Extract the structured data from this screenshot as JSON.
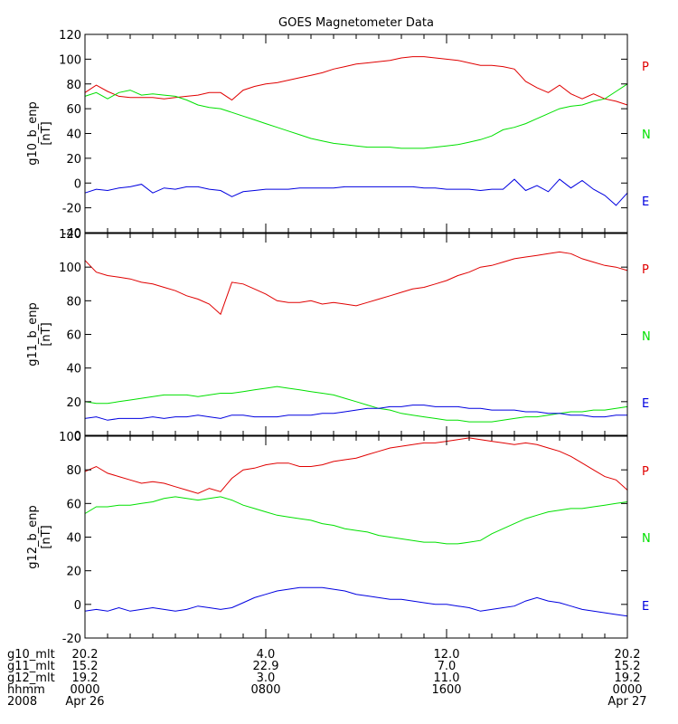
{
  "title": "GOES Magnetometer Data",
  "colors": {
    "P": "#e00000",
    "N": "#00e000",
    "E": "#0000e0"
  },
  "chart_data": [
    {
      "type": "line",
      "ylabel": "g10_b_enp",
      "yunit": "[nT]",
      "ylim": [
        -40,
        120
      ],
      "yticks": [
        -40,
        -20,
        0,
        20,
        40,
        60,
        80,
        100,
        120
      ],
      "xlim": [
        0,
        24
      ],
      "legend": [
        {
          "label": "P",
          "series": "P"
        },
        {
          "label": "N",
          "series": "N"
        },
        {
          "label": "E",
          "series": "E"
        }
      ],
      "series": [
        {
          "key": "P",
          "x": [
            0,
            0.5,
            1,
            1.5,
            2,
            2.5,
            3,
            3.5,
            4,
            4.5,
            5,
            5.5,
            6,
            6.5,
            7,
            7.5,
            8,
            8.5,
            9,
            9.5,
            10,
            10.5,
            11,
            11.5,
            12,
            12.5,
            13,
            13.5,
            14,
            14.5,
            15,
            15.5,
            16,
            16.5,
            17,
            17.5,
            18,
            18.5,
            19,
            19.5,
            20,
            20.5,
            21,
            21.5,
            22,
            22.5,
            23,
            23.5,
            24
          ],
          "y": [
            73,
            79,
            74,
            70,
            69,
            69,
            69,
            68,
            69,
            70,
            71,
            73,
            73,
            67,
            75,
            78,
            80,
            81,
            83,
            85,
            87,
            89,
            92,
            94,
            96,
            97,
            98,
            99,
            101,
            102,
            102,
            101,
            100,
            99,
            97,
            95,
            95,
            94,
            92,
            82,
            77,
            73,
            79,
            72,
            68,
            72,
            68,
            66,
            63
          ]
        },
        {
          "key": "N",
          "x": [
            0,
            0.5,
            1,
            1.5,
            2,
            2.5,
            3,
            3.5,
            4,
            4.5,
            5,
            5.5,
            6,
            6.5,
            7,
            7.5,
            8,
            8.5,
            9,
            9.5,
            10,
            10.5,
            11,
            11.5,
            12,
            12.5,
            13,
            13.5,
            14,
            14.5,
            15,
            15.5,
            16,
            16.5,
            17,
            17.5,
            18,
            18.5,
            19,
            19.5,
            20,
            20.5,
            21,
            21.5,
            22,
            22.5,
            23,
            23.5,
            24
          ],
          "y": [
            70,
            73,
            68,
            73,
            75,
            71,
            72,
            71,
            70,
            67,
            63,
            61,
            60,
            57,
            54,
            51,
            48,
            45,
            42,
            39,
            36,
            34,
            32,
            31,
            30,
            29,
            29,
            29,
            28,
            28,
            28,
            29,
            30,
            31,
            33,
            35,
            38,
            43,
            45,
            48,
            52,
            56,
            60,
            62,
            63,
            66,
            68,
            74,
            80
          ]
        },
        {
          "key": "E",
          "x": [
            0,
            0.5,
            1,
            1.5,
            2,
            2.5,
            3,
            3.5,
            4,
            4.5,
            5,
            5.5,
            6,
            6.5,
            7,
            7.5,
            8,
            8.5,
            9,
            9.5,
            10,
            10.5,
            11,
            11.5,
            12,
            12.5,
            13,
            13.5,
            14,
            14.5,
            15,
            15.5,
            16,
            16.5,
            17,
            17.5,
            18,
            18.5,
            19,
            19.5,
            20,
            20.5,
            21,
            21.5,
            22,
            22.5,
            23,
            23.5,
            24
          ],
          "y": [
            -8,
            -5,
            -6,
            -4,
            -3,
            -1,
            -8,
            -4,
            -5,
            -3,
            -3,
            -5,
            -6,
            -11,
            -7,
            -6,
            -5,
            -5,
            -5,
            -4,
            -4,
            -4,
            -4,
            -3,
            -3,
            -3,
            -3,
            -3,
            -3,
            -3,
            -4,
            -4,
            -5,
            -5,
            -5,
            -6,
            -5,
            -5,
            3,
            -6,
            -2,
            -7,
            3,
            -4,
            2,
            -5,
            -10,
            -18,
            -8
          ]
        }
      ]
    },
    {
      "type": "line",
      "ylabel": "g11_b_enp",
      "yunit": "[nT]",
      "ylim": [
        0,
        120
      ],
      "yticks": [
        0,
        20,
        40,
        60,
        80,
        100,
        120
      ],
      "xlim": [
        0,
        24
      ],
      "legend": [
        {
          "label": "P",
          "series": "P"
        },
        {
          "label": "N",
          "series": "N"
        },
        {
          "label": "E",
          "series": "E"
        }
      ],
      "series": [
        {
          "key": "P",
          "x": [
            0,
            0.5,
            1,
            1.5,
            2,
            2.5,
            3,
            3.5,
            4,
            4.5,
            5,
            5.5,
            6,
            6.5,
            7,
            7.5,
            8,
            8.5,
            9,
            9.5,
            10,
            10.5,
            11,
            11.5,
            12,
            12.5,
            13,
            13.5,
            14,
            14.5,
            15,
            15.5,
            16,
            16.5,
            17,
            17.5,
            18,
            18.5,
            19,
            19.5,
            20,
            20.5,
            21,
            21.5,
            22,
            22.5,
            23,
            23.5,
            24
          ],
          "y": [
            104,
            97,
            95,
            94,
            93,
            91,
            90,
            88,
            86,
            83,
            81,
            78,
            72,
            91,
            90,
            87,
            84,
            80,
            79,
            79,
            80,
            78,
            79,
            78,
            77,
            79,
            81,
            83,
            85,
            87,
            88,
            90,
            92,
            95,
            97,
            100,
            101,
            103,
            105,
            106,
            107,
            108,
            109,
            108,
            105,
            103,
            101,
            100,
            98
          ]
        },
        {
          "key": "N",
          "x": [
            0,
            0.5,
            1,
            1.5,
            2,
            2.5,
            3,
            3.5,
            4,
            4.5,
            5,
            5.5,
            6,
            6.5,
            7,
            7.5,
            8,
            8.5,
            9,
            9.5,
            10,
            10.5,
            11,
            11.5,
            12,
            12.5,
            13,
            13.5,
            14,
            14.5,
            15,
            15.5,
            16,
            16.5,
            17,
            17.5,
            18,
            18.5,
            19,
            19.5,
            20,
            20.5,
            21,
            21.5,
            22,
            22.5,
            23,
            23.5,
            24
          ],
          "y": [
            20,
            19,
            19,
            20,
            21,
            22,
            23,
            24,
            24,
            24,
            23,
            24,
            25,
            25,
            26,
            27,
            28,
            29,
            28,
            27,
            26,
            25,
            24,
            22,
            20,
            18,
            16,
            15,
            13,
            12,
            11,
            10,
            9,
            9,
            8,
            8,
            8,
            9,
            10,
            11,
            11,
            12,
            13,
            14,
            14,
            15,
            15,
            16,
            17
          ]
        },
        {
          "key": "E",
          "x": [
            0,
            0.5,
            1,
            1.5,
            2,
            2.5,
            3,
            3.5,
            4,
            4.5,
            5,
            5.5,
            6,
            6.5,
            7,
            7.5,
            8,
            8.5,
            9,
            9.5,
            10,
            10.5,
            11,
            11.5,
            12,
            12.5,
            13,
            13.5,
            14,
            14.5,
            15,
            15.5,
            16,
            16.5,
            17,
            17.5,
            18,
            18.5,
            19,
            19.5,
            20,
            20.5,
            21,
            21.5,
            22,
            22.5,
            23,
            23.5,
            24
          ],
          "y": [
            10,
            11,
            9,
            10,
            10,
            10,
            11,
            10,
            11,
            11,
            12,
            11,
            10,
            12,
            12,
            11,
            11,
            11,
            12,
            12,
            12,
            13,
            13,
            14,
            15,
            16,
            16,
            17,
            17,
            18,
            18,
            17,
            17,
            17,
            16,
            16,
            15,
            15,
            15,
            14,
            14,
            13,
            13,
            12,
            12,
            11,
            11,
            12,
            12
          ]
        }
      ]
    },
    {
      "type": "line",
      "ylabel": "g12_b_enp",
      "yunit": "[nT]",
      "ylim": [
        -20,
        100
      ],
      "yticks": [
        -20,
        0,
        20,
        40,
        60,
        80,
        100
      ],
      "xlim": [
        0,
        24
      ],
      "legend": [
        {
          "label": "P",
          "series": "P"
        },
        {
          "label": "N",
          "series": "N"
        },
        {
          "label": "E",
          "series": "E"
        }
      ],
      "series": [
        {
          "key": "P",
          "x": [
            0,
            0.5,
            1,
            1.5,
            2,
            2.5,
            3,
            3.5,
            4,
            4.5,
            5,
            5.5,
            6,
            6.5,
            7,
            7.5,
            8,
            8.5,
            9,
            9.5,
            10,
            10.5,
            11,
            11.5,
            12,
            12.5,
            13,
            13.5,
            14,
            14.5,
            15,
            15.5,
            16,
            16.5,
            17,
            17.5,
            18,
            18.5,
            19,
            19.5,
            20,
            20.5,
            21,
            21.5,
            22,
            22.5,
            23,
            23.5,
            24
          ],
          "y": [
            79,
            82,
            78,
            76,
            74,
            72,
            73,
            72,
            70,
            68,
            66,
            69,
            67,
            75,
            80,
            81,
            83,
            84,
            84,
            82,
            82,
            83,
            85,
            86,
            87,
            89,
            91,
            93,
            94,
            95,
            96,
            96,
            97,
            98,
            99,
            98,
            97,
            96,
            95,
            96,
            95,
            93,
            91,
            88,
            84,
            80,
            76,
            74,
            68
          ]
        },
        {
          "key": "N",
          "x": [
            0,
            0.5,
            1,
            1.5,
            2,
            2.5,
            3,
            3.5,
            4,
            4.5,
            5,
            5.5,
            6,
            6.5,
            7,
            7.5,
            8,
            8.5,
            9,
            9.5,
            10,
            10.5,
            11,
            11.5,
            12,
            12.5,
            13,
            13.5,
            14,
            14.5,
            15,
            15.5,
            16,
            16.5,
            17,
            17.5,
            18,
            18.5,
            19,
            19.5,
            20,
            20.5,
            21,
            21.5,
            22,
            22.5,
            23,
            23.5,
            24
          ],
          "y": [
            54,
            58,
            58,
            59,
            59,
            60,
            61,
            63,
            64,
            63,
            62,
            63,
            64,
            62,
            59,
            57,
            55,
            53,
            52,
            51,
            50,
            48,
            47,
            45,
            44,
            43,
            41,
            40,
            39,
            38,
            37,
            37,
            36,
            36,
            37,
            38,
            42,
            45,
            48,
            51,
            53,
            55,
            56,
            57,
            57,
            58,
            59,
            60,
            61
          ]
        },
        {
          "key": "E",
          "x": [
            0,
            0.5,
            1,
            1.5,
            2,
            2.5,
            3,
            3.5,
            4,
            4.5,
            5,
            5.5,
            6,
            6.5,
            7,
            7.5,
            8,
            8.5,
            9,
            9.5,
            10,
            10.5,
            11,
            11.5,
            12,
            12.5,
            13,
            13.5,
            14,
            14.5,
            15,
            15.5,
            16,
            16.5,
            17,
            17.5,
            18,
            18.5,
            19,
            19.5,
            20,
            20.5,
            21,
            21.5,
            22,
            22.5,
            23,
            23.5,
            24
          ],
          "y": [
            -4,
            -3,
            -4,
            -2,
            -4,
            -3,
            -2,
            -3,
            -4,
            -3,
            -1,
            -2,
            -3,
            -2,
            1,
            4,
            6,
            8,
            9,
            10,
            10,
            10,
            9,
            8,
            6,
            5,
            4,
            3,
            3,
            2,
            1,
            0,
            0,
            -1,
            -2,
            -4,
            -3,
            -2,
            -1,
            2,
            4,
            2,
            1,
            -1,
            -3,
            -4,
            -5,
            -6,
            -7
          ]
        }
      ]
    }
  ],
  "xaxis": {
    "ticks": [
      0,
      8,
      16,
      24
    ],
    "rows": [
      {
        "label": "g10_mlt",
        "values": [
          "20.2",
          "4.0",
          "12.0",
          "20.2"
        ]
      },
      {
        "label": "g11_mlt",
        "values": [
          "15.2",
          "22.9",
          "7.0",
          "15.2"
        ]
      },
      {
        "label": "g12_mlt",
        "values": [
          "19.2",
          "3.0",
          "11.0",
          "19.2"
        ]
      },
      {
        "label": "hhmm",
        "values": [
          "0000",
          "0800",
          "1600",
          "0000"
        ]
      },
      {
        "label": "2008",
        "values": [
          "Apr 26",
          "",
          "",
          "Apr 27"
        ]
      }
    ]
  }
}
